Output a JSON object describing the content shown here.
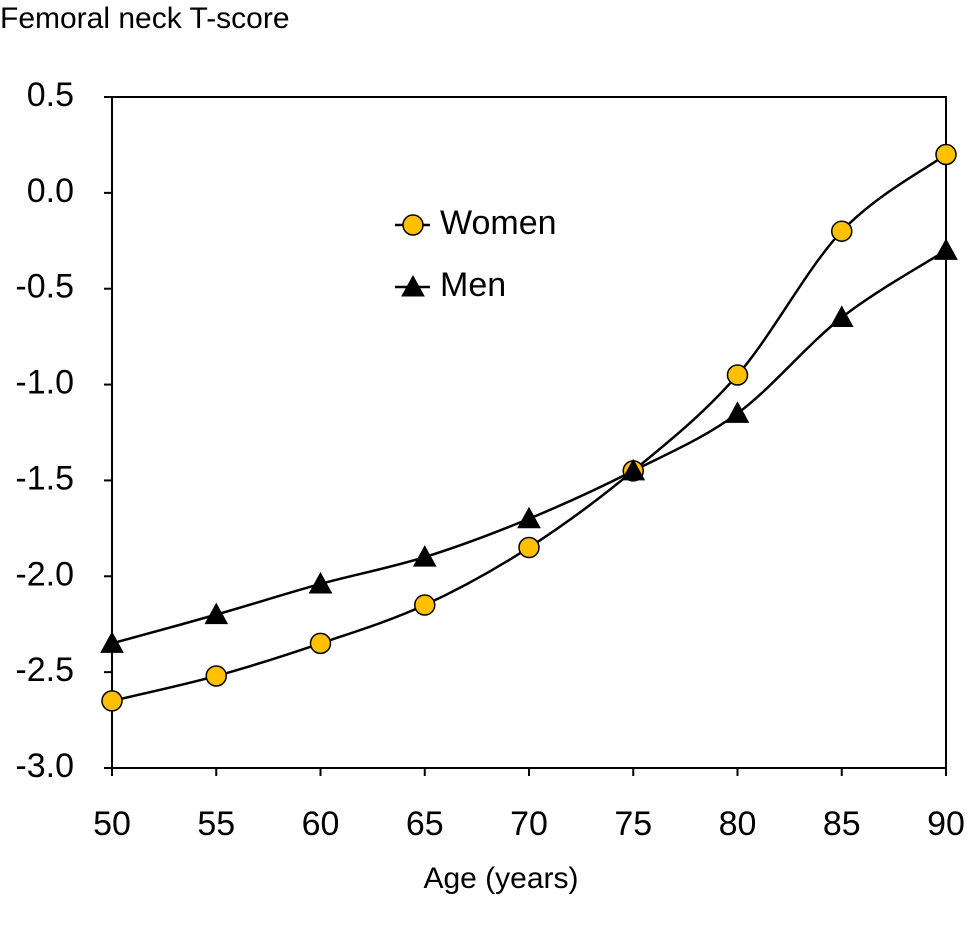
{
  "chart_data": {
    "type": "line",
    "title": "Femoral neck T-score",
    "x_label": "Age (years)",
    "x": [
      50,
      55,
      60,
      65,
      70,
      75,
      80,
      85,
      90
    ],
    "series": [
      {
        "name": "Women",
        "color": "#ffc000",
        "marker": "circle",
        "values": [
          -2.65,
          -2.52,
          -2.35,
          -2.15,
          -1.85,
          -1.45,
          -0.95,
          -0.2,
          0.2
        ]
      },
      {
        "name": "Men",
        "color": "#000000",
        "marker": "triangle",
        "values": [
          -2.35,
          -2.2,
          -2.04,
          -1.9,
          -1.7,
          -1.45,
          -1.15,
          -0.65,
          -0.3
        ]
      }
    ],
    "xlim": [
      50,
      90
    ],
    "xticks": [
      50,
      55,
      60,
      65,
      70,
      75,
      80,
      85,
      90
    ],
    "ylim": [
      -3,
      0.5
    ],
    "yticks": [
      {
        "value": -3,
        "label": "-3.0"
      },
      -2.5,
      {
        "value": -2,
        "label": "-2.0"
      },
      -1.5,
      {
        "value": -1,
        "label": "-1.0"
      },
      -0.5,
      {
        "value": 0,
        "label": "0.0"
      },
      0.5
    ],
    "legend": "upper-left",
    "grid": false
  }
}
